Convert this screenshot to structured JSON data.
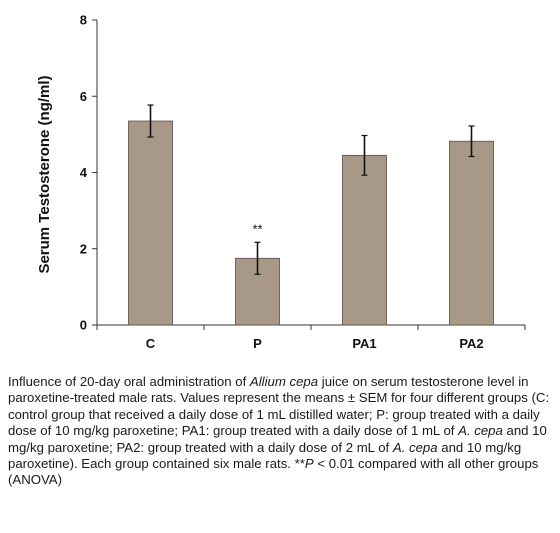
{
  "chart_data": {
    "type": "bar",
    "categories": [
      "C",
      "P",
      "PA1",
      "PA2"
    ],
    "values": [
      5.35,
      1.75,
      4.45,
      4.82
    ],
    "errors": [
      0.42,
      0.42,
      0.52,
      0.4
    ],
    "ylabel": "Serum Testosterone (ng/ml)",
    "ylim": [
      0,
      8
    ],
    "yticks": [
      "0",
      "2",
      "4",
      "6",
      "8"
    ],
    "annotations": [
      {
        "category": "P",
        "text": "**"
      }
    ],
    "grid": false,
    "bar_color": "#a89888",
    "bar_stroke": "#5a4d44"
  },
  "caption": {
    "p1": "Influence of 20-day oral administration of ",
    "species1": "Allium cepa",
    "p2": " juice on serum testosterone level in paroxetine-treated male rats. Values represent the means ± SEM for four different groups (C: control group that received a daily dose of 1 mL distilled water; P: group treated with a daily dose of 10 mg/kg paroxetine; PA1: group treated with a daily dose of 1 mL of ",
    "species2": "A. cepa",
    "p3": " and 10 mg/kg paroxetine; PA2: group treated with a daily dose of 2 mL of ",
    "species3": "A. cepa",
    "p4": " and 10 mg/kg paroxetine). Each group contained six male rats. **",
    "pvar": "P",
    "p5": " < 0.01 compared with all other groups (ANOVA)"
  }
}
